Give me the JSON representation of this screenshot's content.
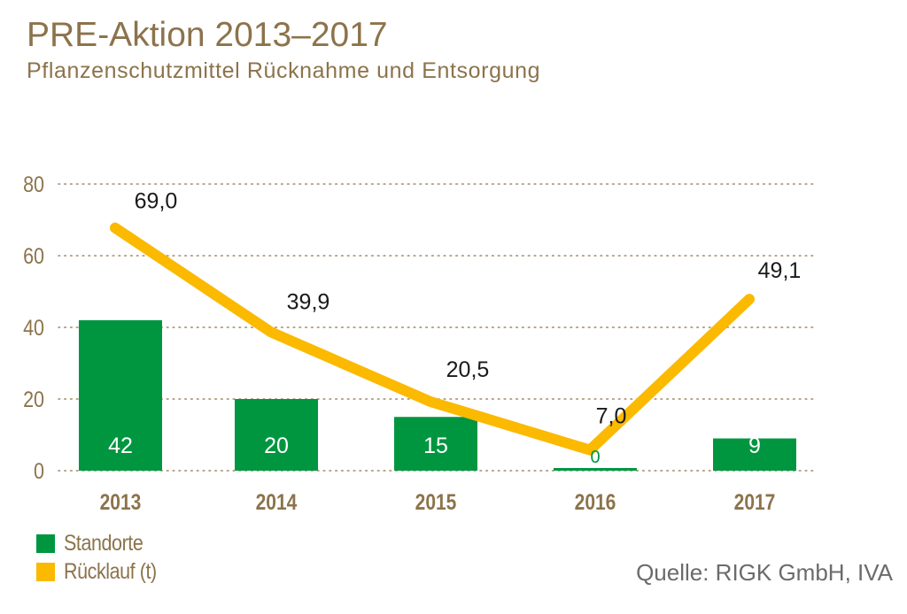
{
  "colors": {
    "bar": "#009640",
    "line": "#fbb900",
    "text_brown": "#8c734b",
    "grid": "#a08a66",
    "label_dark": "#1a1a1a",
    "source_gray": "#6b6b6b"
  },
  "chart_data": {
    "type": "bar",
    "title": "PRE-Aktion 2013–2017",
    "subtitle": "Pflanzenschutzmittel Rücknahme und Entsorgung",
    "xlabel": "",
    "ylabel": "",
    "ylim": [
      0,
      80
    ],
    "yticks": [
      0,
      20,
      40,
      60,
      80
    ],
    "ytick_labels": [
      "0",
      "20",
      "40",
      "60",
      "80"
    ],
    "grid": true,
    "categories": [
      "2013",
      "2014",
      "2015",
      "2016",
      "2017"
    ],
    "series": [
      {
        "name": "Standorte",
        "type": "bar",
        "values": [
          42,
          20,
          15,
          0,
          9
        ],
        "labels": [
          "42",
          "20",
          "15",
          "0",
          "9"
        ]
      },
      {
        "name": "Rücklauf (t)",
        "type": "line",
        "values": [
          69.0,
          39.9,
          20.5,
          7.0,
          49.1
        ],
        "labels": [
          "69,0",
          "39,9",
          "20,5",
          "7,0",
          "49,1"
        ]
      }
    ],
    "legend": {
      "position": "bottom-left",
      "entries": [
        "Standorte",
        "Rücklauf (t)"
      ]
    },
    "source": "Quelle: RIGK GmbH, IVA"
  }
}
